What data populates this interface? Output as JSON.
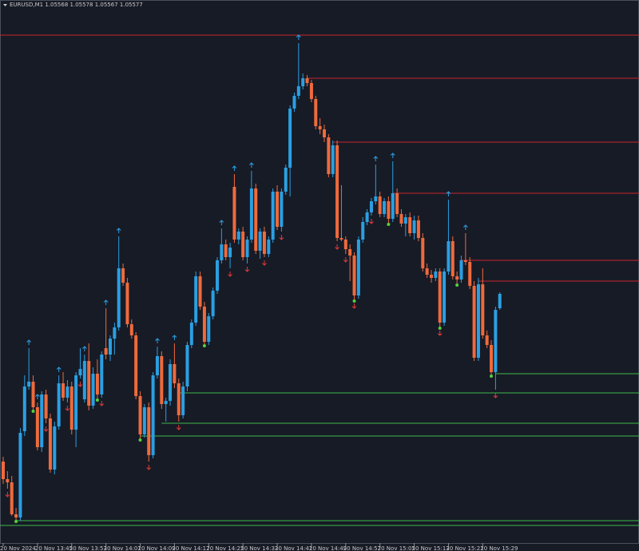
{
  "chart_data": {
    "type": "candlestick",
    "symbol": "EURUSD,M1",
    "ylim": [
      1.05416,
      1.05761
    ],
    "colors": {
      "background": "#171b26",
      "up": "#2b9fe2",
      "down": "#ef6a3c",
      "resistance": "#c9262c",
      "support": "#3cb84a",
      "up_arrow": "#2b9fe2",
      "down_arrow": "#e23a3a",
      "dot": "#52d13c"
    },
    "open": [
      1.05472,
      1.05461,
      1.05459,
      1.05439,
      1.05437,
      1.05491,
      1.05519,
      1.05522,
      1.05506,
      1.05481,
      1.05514,
      1.05499,
      1.05467,
      1.05494,
      1.05521,
      1.05512,
      1.05519,
      1.05492,
      1.05526,
      1.05511,
      1.05535,
      1.05507,
      1.05527,
      1.05514,
      1.05543,
      1.05539,
      1.05549,
      1.05556,
      1.05593,
      1.05584,
      1.05558,
      1.05551,
      1.05513,
      1.05489,
      1.05506,
      1.05476,
      1.05526,
      1.05538,
      1.05508,
      1.0551,
      1.05533,
      1.05521,
      1.05501,
      1.05519,
      1.05545,
      1.05559,
      1.05588,
      1.05569,
      1.05547,
      1.05563,
      1.05579,
      1.05598,
      1.05608,
      1.056,
      1.05644,
      1.05611,
      1.05616,
      1.056,
      1.05611,
      1.05643,
      1.05604,
      1.05616,
      1.05602,
      1.05611,
      1.05641,
      1.05619,
      1.05641,
      1.05656,
      1.05693,
      1.05701,
      1.05707,
      1.05712,
      1.05709,
      1.05699,
      1.05682,
      1.0568,
      1.05675,
      1.05652,
      1.0567,
      1.05612,
      1.05611,
      1.05605,
      1.05601,
      1.05576,
      1.05611,
      1.05622,
      1.05628,
      1.05635,
      1.05638,
      1.05627,
      1.05635,
      1.05624,
      1.0564,
      1.05627,
      1.05621,
      1.05625,
      1.05615,
      1.05623,
      1.05612,
      1.05593,
      1.05589,
      1.05587,
      1.05591,
      1.05559,
      1.05591,
      1.0561,
      1.05588,
      1.05586,
      1.05598,
      1.05597,
      1.05582,
      1.05537,
      1.05583,
      1.05551,
      1.05545,
      1.05528,
      1.05568
    ],
    "high": [
      1.05475,
      1.05466,
      1.05463,
      1.05443,
      1.05493,
      1.05526,
      1.05543,
      1.05526,
      1.05509,
      1.05516,
      1.05517,
      1.05502,
      1.05497,
      1.05526,
      1.05528,
      1.05523,
      1.05522,
      1.05528,
      1.05543,
      1.05539,
      1.05546,
      1.05531,
      1.05536,
      1.05541,
      1.05568,
      1.05551,
      1.05559,
      1.05613,
      1.05596,
      1.05587,
      1.05561,
      1.05553,
      1.05516,
      1.05508,
      1.05509,
      1.05528,
      1.05544,
      1.05541,
      1.05512,
      1.05536,
      1.05546,
      1.05524,
      1.05522,
      1.05547,
      1.05561,
      1.05591,
      1.05591,
      1.05572,
      1.05565,
      1.05581,
      1.056,
      1.05618,
      1.05611,
      1.05609,
      1.05652,
      1.05618,
      1.05619,
      1.05613,
      1.05654,
      1.05646,
      1.05618,
      1.05619,
      1.05613,
      1.05643,
      1.05645,
      1.05643,
      1.05658,
      1.05695,
      1.05703,
      1.05734,
      1.05715,
      1.05714,
      1.05711,
      1.05701,
      1.05687,
      1.05683,
      1.05677,
      1.05673,
      1.05673,
      1.05645,
      1.05613,
      1.05608,
      1.05603,
      1.05613,
      1.05625,
      1.0563,
      1.05637,
      1.05658,
      1.05641,
      1.05637,
      1.05638,
      1.0566,
      1.05643,
      1.0563,
      1.05627,
      1.05628,
      1.05626,
      1.05626,
      1.05615,
      1.05596,
      1.05592,
      1.05593,
      1.05593,
      1.05593,
      1.05636,
      1.05613,
      1.05591,
      1.05601,
      1.05615,
      1.056,
      1.05585,
      1.05587,
      1.05593,
      1.05554,
      1.05548,
      1.05569,
      1.05578
    ],
    "low": [
      1.05458,
      1.05455,
      1.05438,
      1.05435,
      1.05435,
      1.05488,
      1.05517,
      1.05504,
      1.05479,
      1.05478,
      1.05496,
      1.05465,
      1.05464,
      1.05492,
      1.0551,
      1.05509,
      1.05489,
      1.05481,
      1.05524,
      1.05509,
      1.05504,
      1.05505,
      1.05511,
      1.05512,
      1.05536,
      1.05535,
      1.05539,
      1.05554,
      1.05582,
      1.05556,
      1.05549,
      1.05511,
      1.05486,
      1.05487,
      1.05472,
      1.05474,
      1.05524,
      1.05505,
      1.05497,
      1.05507,
      1.05518,
      1.05497,
      1.05499,
      1.05516,
      1.05543,
      1.05557,
      1.05567,
      1.05545,
      1.05545,
      1.05561,
      1.05577,
      1.05596,
      1.05598,
      1.05593,
      1.05609,
      1.05608,
      1.05598,
      1.05596,
      1.05609,
      1.05602,
      1.05599,
      1.056,
      1.056,
      1.05609,
      1.05617,
      1.05616,
      1.05639,
      1.05638,
      1.05691,
      1.05699,
      1.05705,
      1.05707,
      1.05697,
      1.0568,
      1.05677,
      1.05672,
      1.0565,
      1.0565,
      1.0561,
      1.0561,
      1.05602,
      1.05585,
      1.05573,
      1.05574,
      1.05609,
      1.0562,
      1.05626,
      1.05633,
      1.05625,
      1.05625,
      1.05621,
      1.05622,
      1.05625,
      1.05619,
      1.05613,
      1.05613,
      1.05611,
      1.0561,
      1.05591,
      1.05587,
      1.05584,
      1.05585,
      1.05556,
      1.05557,
      1.05589,
      1.05586,
      1.05583,
      1.05584,
      1.05595,
      1.0558,
      1.05535,
      1.05535,
      1.05549,
      1.05543,
      1.05526,
      1.05517,
      1.05567
    ],
    "close": [
      1.05461,
      1.05459,
      1.05439,
      1.05437,
      1.0549,
      1.05519,
      1.05522,
      1.05506,
      1.05481,
      1.05514,
      1.05499,
      1.05467,
      1.05494,
      1.05521,
      1.05512,
      1.05519,
      1.05492,
      1.05526,
      1.0553,
      1.05535,
      1.05507,
      1.05527,
      1.05514,
      1.05539,
      1.05539,
      1.05549,
      1.05556,
      1.05593,
      1.05584,
      1.05558,
      1.05551,
      1.05513,
      1.05489,
      1.05506,
      1.05476,
      1.05526,
      1.05538,
      1.05508,
      1.0551,
      1.05533,
      1.05521,
      1.05501,
      1.05519,
      1.05545,
      1.05559,
      1.05588,
      1.05569,
      1.05547,
      1.05563,
      1.05579,
      1.05598,
      1.05608,
      1.056,
      1.05606,
      1.05611,
      1.05616,
      1.056,
      1.05611,
      1.05643,
      1.05604,
      1.05616,
      1.05602,
      1.05611,
      1.05641,
      1.05619,
      1.05641,
      1.05656,
      1.05693,
      1.05701,
      1.05707,
      1.05712,
      1.05709,
      1.05699,
      1.05682,
      1.0568,
      1.05675,
      1.05652,
      1.0567,
      1.05612,
      1.05611,
      1.05605,
      1.05601,
      1.05576,
      1.05611,
      1.05622,
      1.05628,
      1.05635,
      1.05638,
      1.05627,
      1.05635,
      1.05624,
      1.0564,
      1.05627,
      1.05621,
      1.05625,
      1.05615,
      1.05623,
      1.05612,
      1.05593,
      1.05589,
      1.05587,
      1.05591,
      1.05559,
      1.05591,
      1.0561,
      1.05588,
      1.05586,
      1.05598,
      1.05597,
      1.05582,
      1.05537,
      1.05583,
      1.05551,
      1.05545,
      1.05528,
      1.05567,
      1.05577
    ],
    "levels": [
      {
        "price": 1.05739,
        "from": 0,
        "kind": "resistance"
      },
      {
        "price": 1.05712,
        "from": 71,
        "kind": "resistance"
      },
      {
        "price": 1.05672,
        "from": 77,
        "kind": "resistance"
      },
      {
        "price": 1.0564,
        "from": 91,
        "kind": "resistance"
      },
      {
        "price": 1.05598,
        "from": 107,
        "kind": "resistance"
      },
      {
        "price": 1.05585,
        "from": 111,
        "kind": "resistance"
      },
      {
        "price": 1.05527,
        "from": 115,
        "kind": "support"
      },
      {
        "price": 1.05515,
        "from": 41,
        "kind": "support"
      },
      {
        "price": 1.05496,
        "from": 37,
        "kind": "support"
      },
      {
        "price": 1.05488,
        "from": 32,
        "kind": "support"
      },
      {
        "price": 1.05435,
        "from": 3,
        "kind": "support"
      },
      {
        "price": 1.05432,
        "from": 0,
        "kind": "support"
      }
    ],
    "up_arrows": [
      6,
      8,
      13,
      19,
      24,
      27,
      36,
      40,
      51,
      54,
      58,
      69,
      87,
      91,
      104,
      108
    ],
    "down_arrows": [
      1,
      10,
      15,
      18,
      23,
      34,
      41,
      53,
      57,
      61,
      65,
      78,
      80,
      82,
      86,
      102,
      115
    ],
    "dots": [
      3,
      7,
      22,
      32,
      47,
      82,
      90,
      102,
      106,
      114
    ],
    "xticks": [
      {
        "value": 0,
        "label": "20 Nov 2024"
      },
      {
        "value": 8,
        "label": "20 Nov 13:45"
      },
      {
        "value": 16,
        "label": "20 Nov 13:53"
      },
      {
        "value": 24,
        "label": "20 Nov 14:01"
      },
      {
        "value": 32,
        "label": "20 Nov 14:09"
      },
      {
        "value": 40,
        "label": "20 Nov 14:17"
      },
      {
        "value": 48,
        "label": "20 Nov 14:25"
      },
      {
        "value": 56,
        "label": "20 Nov 14:33"
      },
      {
        "value": 64,
        "label": "20 Nov 14:41"
      },
      {
        "value": 72,
        "label": "20 Nov 14:49"
      },
      {
        "value": 80,
        "label": "20 Nov 14:57"
      },
      {
        "value": 88,
        "label": "20 Nov 15:05"
      },
      {
        "value": 96,
        "label": "20 Nov 15:13"
      },
      {
        "value": 104,
        "label": "20 Nov 15:21"
      },
      {
        "value": 112,
        "label": "20 Nov 15:29"
      }
    ]
  }
}
